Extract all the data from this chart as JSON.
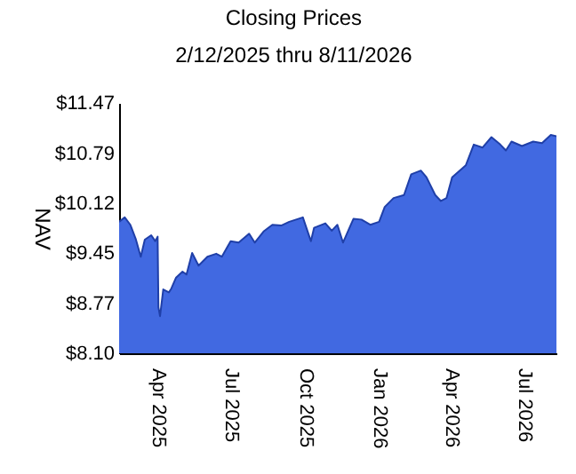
{
  "chart_data": {
    "type": "area",
    "title": "Closing Prices",
    "subtitle": "2/12/2025 thru 8/11/2026",
    "ylabel": "NAV",
    "x": [
      "2025-02-12",
      "2025-02-19",
      "2025-02-26",
      "2025-03-05",
      "2025-03-11",
      "2025-03-16",
      "2025-03-24",
      "2025-03-29",
      "2025-04-01",
      "2025-04-02",
      "2025-04-04",
      "2025-04-08",
      "2025-04-15",
      "2025-04-18",
      "2025-04-24",
      "2025-05-02",
      "2025-05-07",
      "2025-05-14",
      "2025-05-22",
      "2025-06-02",
      "2025-06-13",
      "2025-06-20",
      "2025-07-01",
      "2025-07-11",
      "2025-07-24",
      "2025-07-31",
      "2025-08-11",
      "2025-08-22",
      "2025-09-02",
      "2025-09-12",
      "2025-09-29",
      "2025-10-09",
      "2025-10-13",
      "2025-10-27",
      "2025-11-04",
      "2025-11-11",
      "2025-11-18",
      "2025-12-01",
      "2025-12-11",
      "2025-12-22",
      "2026-01-02",
      "2026-01-09",
      "2026-01-20",
      "2026-02-02",
      "2026-02-11",
      "2026-02-23",
      "2026-03-02",
      "2026-03-13",
      "2026-03-20",
      "2026-03-27",
      "2026-04-03",
      "2026-04-20",
      "2026-04-30",
      "2026-05-11",
      "2026-05-22",
      "2026-06-02",
      "2026-06-09",
      "2026-06-16",
      "2026-06-29",
      "2026-07-13",
      "2026-07-24",
      "2026-08-04",
      "2026-08-11"
    ],
    "series": [
      {
        "color": "#4169e1",
        "values": [
          9.87,
          9.93,
          9.83,
          9.63,
          9.4,
          9.63,
          9.69,
          9.61,
          9.67,
          8.72,
          8.6,
          8.96,
          8.92,
          8.97,
          9.12,
          9.2,
          9.16,
          9.45,
          9.28,
          9.4,
          9.44,
          9.4,
          9.61,
          9.59,
          9.71,
          9.59,
          9.74,
          9.83,
          9.82,
          9.87,
          9.93,
          9.61,
          9.79,
          9.85,
          9.75,
          9.83,
          9.59,
          9.91,
          9.9,
          9.83,
          9.87,
          10.07,
          10.19,
          10.23,
          10.51,
          10.56,
          10.47,
          10.23,
          10.15,
          10.19,
          10.47,
          10.63,
          10.91,
          10.87,
          11.01,
          10.91,
          10.83,
          10.95,
          10.89,
          10.95,
          10.93,
          11.04,
          11.02
        ]
      }
    ],
    "xlim": [
      "2025-02-12",
      "2026-08-11"
    ],
    "xticks": [
      {
        "value": "2025-04-01",
        "label": "Apr  2025"
      },
      {
        "value": "2025-07-01",
        "label": "Jul  2025"
      },
      {
        "value": "2025-10-01",
        "label": "Oct  2025"
      },
      {
        "value": "2026-01-01",
        "label": "Jan  2026"
      },
      {
        "value": "2026-04-01",
        "label": "Apr  2026"
      },
      {
        "value": "2026-07-01",
        "label": "Jul  2026"
      }
    ],
    "ylim": [
      8.1,
      11.47
    ],
    "yticks": [
      {
        "value": 8.1,
        "label": "$8.10"
      },
      {
        "value": 8.77,
        "label": "$8.77"
      },
      {
        "value": 9.45,
        "label": "$9.45"
      },
      {
        "value": 10.12,
        "label": "$10.12"
      },
      {
        "value": 10.79,
        "label": "$10.79"
      },
      {
        "value": 11.47,
        "label": "$11.47"
      }
    ],
    "grid": false
  }
}
